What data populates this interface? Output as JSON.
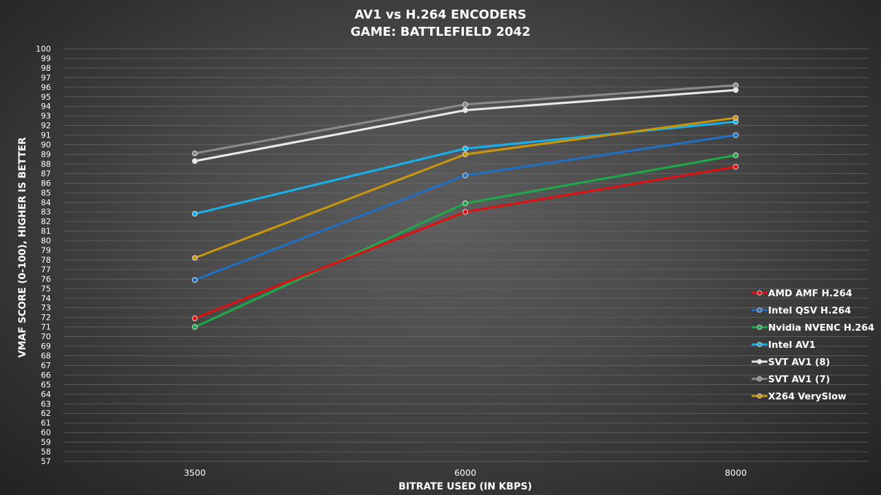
{
  "chart_data": {
    "type": "line",
    "title_lines": [
      "AV1 vs H.264 ENCODERS",
      "GAME: BATTLEFIELD 2042"
    ],
    "xlabel": "BITRATE USED (IN KBPS)",
    "ylabel": "VMAF SCORE (0-100), HIGHER IS BETTER",
    "categories": [
      "3500",
      "6000",
      "8000"
    ],
    "ylim": [
      57,
      100
    ],
    "y_tick_step": 1,
    "grid": true,
    "legend_position": "right",
    "series": [
      {
        "name": "AMD AMF H.264",
        "color": "#e01010",
        "values": [
          71.9,
          83.0,
          87.7
        ]
      },
      {
        "name": "Intel QSV H.264",
        "color": "#1f6fc4",
        "values": [
          75.9,
          86.8,
          91.0
        ]
      },
      {
        "name": "Nvidia NVENC H.264",
        "color": "#1fa84a",
        "values": [
          71.0,
          83.9,
          88.9
        ]
      },
      {
        "name": "Intel AV1",
        "color": "#18b0ea",
        "values": [
          82.8,
          89.6,
          92.4
        ]
      },
      {
        "name": "SVT AV1 (8)",
        "color": "#e8e8e8",
        "values": [
          88.3,
          93.6,
          95.7
        ]
      },
      {
        "name": "SVT AV1 (7)",
        "color": "#8a8a8a",
        "values": [
          89.1,
          94.2,
          96.2
        ]
      },
      {
        "name": "X264 VerySlow",
        "color": "#c8960c",
        "values": [
          78.2,
          89.0,
          92.8
        ]
      }
    ]
  }
}
